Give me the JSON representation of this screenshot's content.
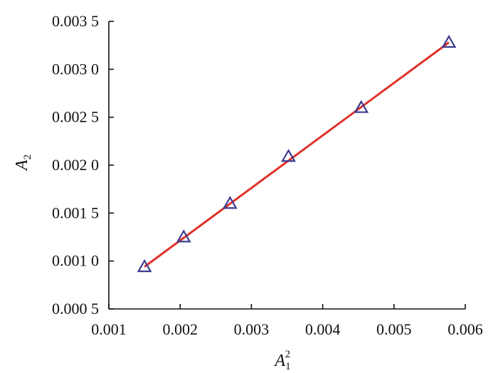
{
  "chart_data": {
    "type": "scatter",
    "x": [
      0.0015,
      0.00205,
      0.0027,
      0.00352,
      0.00454,
      0.00577
    ],
    "y": [
      0.00094,
      0.00125,
      0.0016,
      0.00209,
      0.0026,
      0.00328
    ],
    "fit_line": {
      "x": [
        0.0015,
        0.00577
      ],
      "y": [
        0.00094,
        0.00328
      ]
    },
    "xlim": [
      0.001,
      0.006
    ],
    "ylim": [
      0.0005,
      0.0035
    ],
    "x_ticks": [
      "0.001",
      "0.002",
      "0.003",
      "0.004",
      "0.005",
      "0.006"
    ],
    "y_ticks": [
      "0.000 5",
      "0.001 0",
      "0.001 5",
      "0.002 0",
      "0.002 5",
      "0.003 0",
      "0.003 5"
    ],
    "x_tick_values": [
      0.001,
      0.002,
      0.003,
      0.004,
      0.005,
      0.006
    ],
    "y_tick_values": [
      0.0005,
      0.001,
      0.0015,
      0.002,
      0.0025,
      0.003,
      0.0035
    ],
    "xlabel": {
      "main": "A",
      "sub": "1",
      "sup": "2"
    },
    "ylabel": {
      "main": "A",
      "sub": "2"
    },
    "grid": false,
    "colors": {
      "marker": "#3b3a8f",
      "line": "#e0312b",
      "axis": "#111111"
    }
  }
}
